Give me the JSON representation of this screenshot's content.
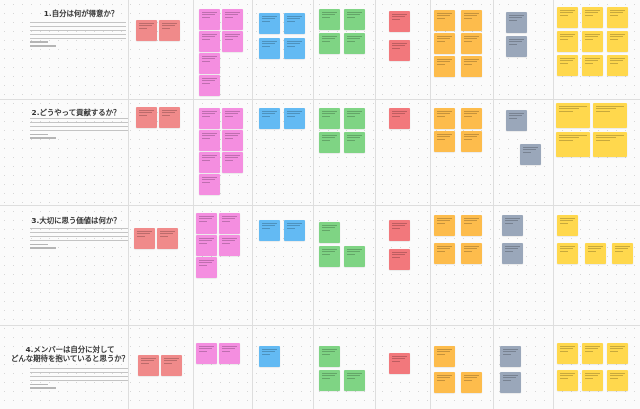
{
  "board": {
    "sections": [
      {
        "number": "1",
        "title": "1.自分は何が得意か？"
      },
      {
        "number": "2",
        "title": "2.どうやって貢献するか？"
      },
      {
        "number": "3",
        "title": "3.大切に思う価値は何か？"
      },
      {
        "number": "4",
        "title": "4.メンバーは自分に対して\nどんな期待を抱いていると思うか？"
      }
    ],
    "note_colors": {
      "pink": "#f08a8a",
      "magenta": "#f48ee0",
      "blue": "#63baf3",
      "green": "#7fd484",
      "red": "#f2787c",
      "orange": "#fdbc4c",
      "gray": "#9aa7ba",
      "yellow": "#ffd84d"
    }
  }
}
